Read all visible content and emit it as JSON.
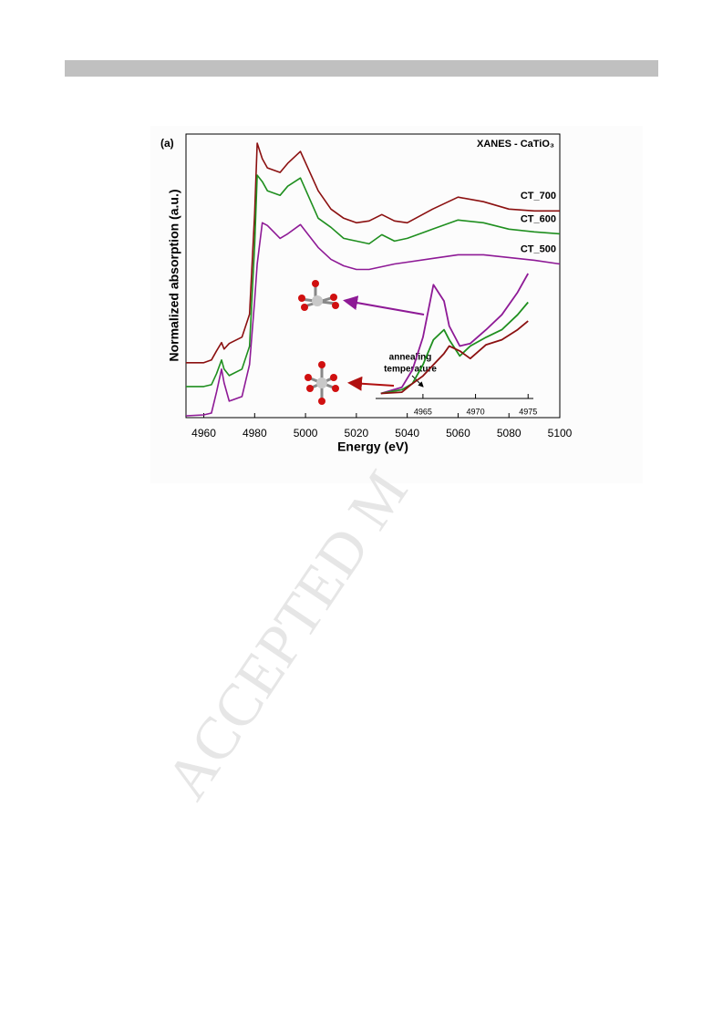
{
  "chart_data": [
    {
      "type": "line",
      "title": "XANES - CaTiO₃",
      "annotation": "(a)",
      "x_label": "Energy (eV)",
      "y_label": "Normalized absorption (a.u.)",
      "x": [
        4953,
        4960,
        4963,
        4965,
        4967,
        4968,
        4970,
        4975,
        4978,
        4980,
        4981,
        4983,
        4985,
        4990,
        4993,
        4998,
        5005,
        5010,
        5015,
        5020,
        5025,
        5030,
        5035,
        5040,
        5050,
        5060,
        5070,
        5080,
        5090,
        5100
      ],
      "series": [
        {
          "name": "CT_700",
          "color": "#8b1010",
          "values": [
            0.6,
            0.6,
            0.63,
            0.73,
            0.82,
            0.75,
            0.81,
            0.88,
            1.13,
            2.23,
            3.0,
            2.83,
            2.73,
            2.68,
            2.78,
            2.91,
            2.48,
            2.28,
            2.18,
            2.13,
            2.15,
            2.22,
            2.15,
            2.13,
            2.28,
            2.41,
            2.36,
            2.28,
            2.26,
            2.26
          ]
        },
        {
          "name": "CT_600",
          "color": "#1f8f1f",
          "values": [
            0.34,
            0.34,
            0.36,
            0.48,
            0.63,
            0.53,
            0.46,
            0.53,
            0.78,
            1.88,
            2.65,
            2.58,
            2.48,
            2.43,
            2.53,
            2.62,
            2.18,
            2.08,
            1.96,
            1.93,
            1.9,
            2.0,
            1.93,
            1.96,
            2.06,
            2.16,
            2.13,
            2.06,
            2.03,
            2.01
          ]
        },
        {
          "name": "CT_500",
          "color": "#8e1a96",
          "values": [
            0.02,
            0.03,
            0.05,
            0.28,
            0.53,
            0.38,
            0.18,
            0.23,
            0.58,
            1.28,
            1.68,
            2.13,
            2.1,
            1.96,
            2.01,
            2.11,
            1.86,
            1.73,
            1.66,
            1.62,
            1.62,
            1.65,
            1.68,
            1.7,
            1.74,
            1.78,
            1.78,
            1.75,
            1.72,
            1.68
          ]
        }
      ],
      "xlim": [
        4953,
        5100
      ],
      "xticks": [
        4960,
        4980,
        5000,
        5020,
        5040,
        5060,
        5080,
        5100
      ],
      "ylim": [
        0,
        3.1
      ]
    },
    {
      "type": "line",
      "annotation_lines": [
        "annealing",
        "temperature"
      ],
      "x": [
        4961,
        4963,
        4964,
        4965,
        4966,
        4967,
        4967.5,
        4968.5,
        4969.5,
        4971,
        4972.5,
        4974,
        4975
      ],
      "series": [
        {
          "color": "#8e1a96",
          "values": [
            0.04,
            0.09,
            0.23,
            0.49,
            0.91,
            0.78,
            0.58,
            0.42,
            0.44,
            0.55,
            0.67,
            0.85,
            1.0
          ]
        },
        {
          "color": "#1f8f1f",
          "values": [
            0.04,
            0.07,
            0.12,
            0.27,
            0.47,
            0.55,
            0.47,
            0.34,
            0.42,
            0.49,
            0.55,
            0.67,
            0.77
          ]
        },
        {
          "color": "#8b1010",
          "values": [
            0.04,
            0.05,
            0.12,
            0.18,
            0.27,
            0.36,
            0.42,
            0.38,
            0.32,
            0.43,
            0.47,
            0.55,
            0.62
          ]
        }
      ],
      "xlim": [
        4960.5,
        4975.5
      ],
      "xticks": [
        4965,
        4970,
        4975
      ],
      "ylim": [
        0,
        1
      ]
    }
  ],
  "watermark": "ACCEPTED M"
}
